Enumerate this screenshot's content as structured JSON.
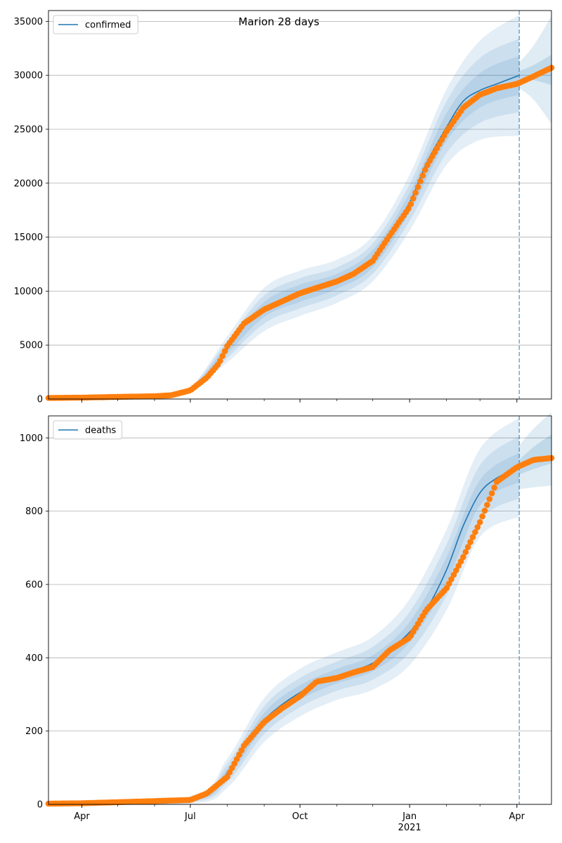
{
  "figure_title": "Marion 28 days",
  "colors": {
    "model": "#1f77b4",
    "observed": "#ff7f0e",
    "band": "#1f77b4",
    "grid": "#b0b0b0",
    "forecast_line": "#1f77b4"
  },
  "x_axis": {
    "ticks": [
      {
        "label": "Apr",
        "date": "2020-04-01"
      },
      {
        "label": "Jul",
        "date": "2020-07-01"
      },
      {
        "label": "Oct",
        "date": "2020-10-01"
      },
      {
        "label": "Jan",
        "date": "2021-01-01"
      },
      {
        "label": "Apr",
        "date": "2021-04-01"
      }
    ],
    "year_label": {
      "label": "2021",
      "date": "2021-01-01"
    },
    "range": [
      "2020-03-04",
      "2021-04-30"
    ],
    "forecast_start": "2021-04-03"
  },
  "chart_data": [
    {
      "type": "line",
      "legend": "confirmed",
      "legend_position": "top-left",
      "grid": "horizontal",
      "ylim": [
        0,
        36000
      ],
      "yticks": [
        0,
        5000,
        10000,
        15000,
        20000,
        25000,
        30000,
        35000
      ],
      "model": {
        "x": [
          "2020-03-04",
          "2020-04-01",
          "2020-05-01",
          "2020-06-01",
          "2020-06-15",
          "2020-07-01",
          "2020-07-15",
          "2020-08-01",
          "2020-08-15",
          "2020-09-01",
          "2020-09-15",
          "2020-10-01",
          "2020-10-15",
          "2020-11-01",
          "2020-11-15",
          "2020-12-01",
          "2020-12-15",
          "2021-01-01",
          "2021-01-15",
          "2021-02-01",
          "2021-02-15",
          "2021-03-01",
          "2021-03-15",
          "2021-04-03"
        ],
        "y": [
          80,
          120,
          200,
          260,
          380,
          900,
          2200,
          4600,
          7000,
          8300,
          9100,
          9800,
          10300,
          10900,
          11700,
          13000,
          15300,
          18200,
          21800,
          25200,
          27600,
          28600,
          29200,
          30000
        ]
      },
      "bands": {
        "x": [
          "2020-03-04",
          "2020-06-01",
          "2020-07-01",
          "2020-08-01",
          "2020-09-01",
          "2020-10-01",
          "2020-11-01",
          "2020-12-01",
          "2021-01-01",
          "2021-02-01",
          "2021-03-01",
          "2021-04-03"
        ],
        "mid": [
          80,
          260,
          900,
          4600,
          8300,
          9800,
          10900,
          13000,
          18200,
          25200,
          28600,
          30000
        ],
        "inner": [
          0,
          20,
          80,
          400,
          700,
          800,
          700,
          800,
          900,
          1300,
          1600,
          1800
        ],
        "middle": [
          0,
          40,
          150,
          800,
          1300,
          1400,
          1300,
          1400,
          1700,
          2400,
          3000,
          3400
        ],
        "outer": [
          0,
          60,
          220,
          1200,
          2000,
          2100,
          2000,
          2100,
          2600,
          3500,
          4600,
          5600
        ]
      },
      "observed": {
        "x": [
          "2020-03-04",
          "2020-04-01",
          "2020-05-01",
          "2020-06-01",
          "2020-06-15",
          "2020-07-01",
          "2020-07-15",
          "2020-07-25",
          "2020-08-01",
          "2020-08-15",
          "2020-09-01",
          "2020-09-15",
          "2020-10-01",
          "2020-10-15",
          "2020-11-01",
          "2020-11-15",
          "2020-12-01",
          "2020-12-15",
          "2021-01-01",
          "2021-01-15",
          "2021-02-01",
          "2021-02-15",
          "2021-03-01",
          "2021-03-15",
          "2021-04-01",
          "2021-04-15",
          "2021-04-30"
        ],
        "y": [
          100,
          130,
          200,
          260,
          350,
          800,
          2000,
          3300,
          4900,
          7000,
          8300,
          9000,
          9800,
          10300,
          10900,
          11600,
          12800,
          15100,
          17800,
          21500,
          24800,
          27000,
          28200,
          28800,
          29200,
          29900,
          30700
        ]
      },
      "forecast": {
        "x": [
          "2021-04-03",
          "2021-04-15",
          "2021-04-30"
        ],
        "mid": [
          30000,
          30250,
          30500
        ],
        "inner": [
          400,
          700,
          1400
        ],
        "outer": [
          1200,
          2500,
          5000
        ]
      }
    },
    {
      "type": "line",
      "legend": "deaths",
      "legend_position": "top-left",
      "grid": "horizontal",
      "ylim": [
        0,
        1060
      ],
      "yticks": [
        0,
        200,
        400,
        600,
        800,
        1000
      ],
      "model": {
        "x": [
          "2020-03-04",
          "2020-04-01",
          "2020-05-01",
          "2020-06-01",
          "2020-07-01",
          "2020-07-15",
          "2020-08-01",
          "2020-08-15",
          "2020-09-01",
          "2020-09-15",
          "2020-10-01",
          "2020-10-15",
          "2020-11-01",
          "2020-11-15",
          "2020-12-01",
          "2020-12-15",
          "2021-01-01",
          "2021-01-15",
          "2021-02-01",
          "2021-02-15",
          "2021-03-01",
          "2021-03-15",
          "2021-04-03"
        ],
        "y": [
          0,
          2,
          5,
          8,
          12,
          30,
          85,
          160,
          230,
          270,
          305,
          330,
          350,
          365,
          385,
          420,
          470,
          530,
          640,
          760,
          850,
          890,
          920
        ]
      },
      "bands": {
        "x": [
          "2020-03-04",
          "2020-07-01",
          "2020-08-01",
          "2020-09-01",
          "2020-10-01",
          "2020-11-01",
          "2020-12-01",
          "2021-01-01",
          "2021-02-01",
          "2021-03-01",
          "2021-04-03"
        ],
        "mid": [
          0,
          12,
          85,
          230,
          305,
          350,
          385,
          470,
          640,
          850,
          920
        ],
        "inner": [
          0,
          3,
          12,
          20,
          20,
          20,
          22,
          28,
          35,
          35,
          40
        ],
        "middle": [
          0,
          6,
          25,
          38,
          40,
          40,
          45,
          55,
          70,
          75,
          85
        ],
        "outer": [
          0,
          10,
          40,
          60,
          65,
          65,
          72,
          90,
          110,
          120,
          135
        ]
      },
      "observed": {
        "x": [
          "2020-03-04",
          "2020-04-01",
          "2020-05-01",
          "2020-06-01",
          "2020-07-01",
          "2020-07-15",
          "2020-08-01",
          "2020-08-15",
          "2020-09-01",
          "2020-09-15",
          "2020-10-01",
          "2020-10-15",
          "2020-11-01",
          "2020-11-15",
          "2020-12-01",
          "2020-12-15",
          "2021-01-01",
          "2021-01-15",
          "2021-02-01",
          "2021-02-15",
          "2021-03-01",
          "2021-03-15",
          "2021-04-01",
          "2021-04-15",
          "2021-04-30"
        ],
        "y": [
          2,
          3,
          6,
          9,
          12,
          30,
          75,
          160,
          225,
          260,
          295,
          335,
          345,
          360,
          375,
          420,
          455,
          530,
          590,
          675,
          770,
          880,
          920,
          940,
          945
        ]
      },
      "forecast": {
        "x": [
          "2021-04-03",
          "2021-04-15",
          "2021-04-30"
        ],
        "mid": [
          920,
          945,
          970
        ],
        "inner": [
          20,
          30,
          40
        ],
        "outer": [
          60,
          80,
          100
        ]
      }
    }
  ]
}
